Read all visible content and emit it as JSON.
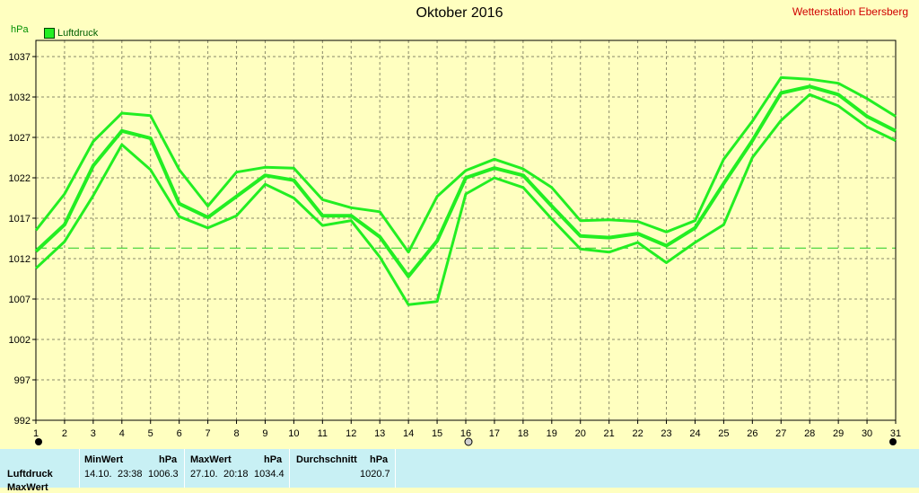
{
  "chart_data": {
    "type": "line",
    "title": "Oktober 2016",
    "station": "Wetterstation Ebersberg",
    "ylabel": "hPa",
    "legend": "Luftdruck",
    "legend_position": "top-left",
    "grid": true,
    "ylim": [
      992,
      1039
    ],
    "yticks": [
      992,
      997,
      1002,
      1007,
      1012,
      1017,
      1022,
      1027,
      1032,
      1037
    ],
    "x": [
      1,
      2,
      3,
      4,
      5,
      6,
      7,
      8,
      9,
      10,
      11,
      12,
      13,
      14,
      15,
      16,
      17,
      18,
      19,
      20,
      21,
      22,
      23,
      24,
      25,
      26,
      27,
      28,
      29,
      30,
      31
    ],
    "xlim": [
      1,
      31
    ],
    "reference_line": 1013.3,
    "series": [
      {
        "role": "max",
        "values": [
          1015.5,
          1020,
          1026.5,
          1030,
          1029.7,
          1023,
          1018.5,
          1022.7,
          1023.3,
          1023.2,
          1019.3,
          1018.3,
          1017.8,
          1012.8,
          1019.7,
          1022.9,
          1024.3,
          1023.1,
          1020.8,
          1016.7,
          1016.8,
          1016.6,
          1015.3,
          1016.7,
          1024.3,
          1029,
          1034.4,
          1034.2,
          1033.7,
          1031.8,
          1029.6
        ]
      },
      {
        "role": "mean",
        "values": [
          1012.9,
          1016.2,
          1023.5,
          1027.8,
          1026.9,
          1018.8,
          1017.1,
          1019.7,
          1022.3,
          1021.7,
          1017.3,
          1017.3,
          1014.7,
          1009.8,
          1014.2,
          1022,
          1023.2,
          1022.3,
          1018.5,
          1014.8,
          1014.6,
          1015.1,
          1013.6,
          1015.8,
          1021.3,
          1026.6,
          1032.5,
          1033.3,
          1032.3,
          1029.6,
          1027.8
        ]
      },
      {
        "role": "min",
        "values": [
          1010.8,
          1014.1,
          1019.8,
          1026.1,
          1023,
          1017.2,
          1015.8,
          1017.3,
          1021.2,
          1019.5,
          1016.1,
          1016.7,
          1012.2,
          1006.3,
          1006.7,
          1020,
          1022,
          1020.8,
          1016.9,
          1013.2,
          1012.8,
          1014,
          1011.5,
          1014,
          1016.2,
          1024.5,
          1029.1,
          1032.3,
          1030.9,
          1028.3,
          1026.6
        ]
      }
    ],
    "series_color": "#22ee22",
    "reference_color": "#22cc22"
  },
  "stats": {
    "row_label": "Luftdruck",
    "row_label_2": "MaxWert",
    "min_header": "MinWert",
    "min_unit": "hPa",
    "min_date": "14.10.",
    "min_time": "23:38",
    "min_value": "1006.3",
    "max_header": "MaxWert",
    "max_unit": "hPa",
    "max_date": "27.10.",
    "max_time": "20:18",
    "max_value": "1034.4",
    "avg_header": "Durchschnitt",
    "avg_unit": "hPa",
    "avg_value": "1020.7"
  },
  "colors": {
    "plot_bg": "#ffffc0",
    "grid": "#8a8a6a",
    "stats_bg": "#c8f0f4",
    "station_text": "#d00000",
    "unit_text": "#009000"
  }
}
